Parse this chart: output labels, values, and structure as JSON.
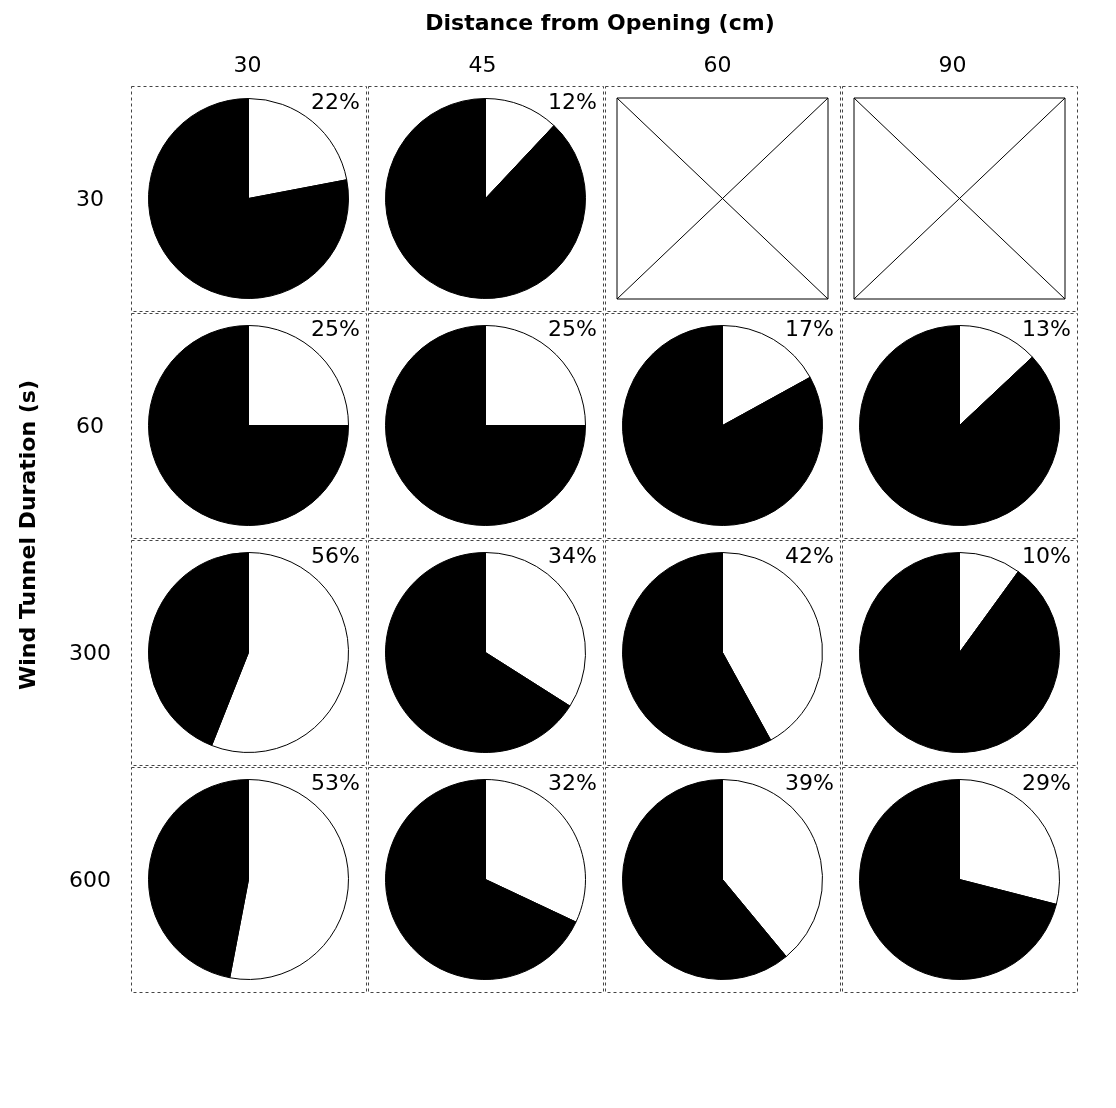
{
  "chart_data": [
    {
      "type": "other",
      "xlabel": "Distance from Opening (cm)",
      "ylabel": "Wind Tunnel Duration (s)",
      "categories": [
        "30",
        "45",
        "60",
        "90"
      ],
      "y_categories": [
        "30",
        "60",
        "300",
        "600"
      ]
    },
    {
      "type": "pie",
      "categories": [
        null,
        null
      ],
      "values": [
        22,
        78
      ],
      "colors": [
        "#ffffff",
        "#000000"
      ],
      "value_labels": [
        "22%",
        null
      ]
    },
    {
      "type": "pie",
      "categories": [
        null,
        null
      ],
      "values": [
        12,
        88
      ],
      "colors": [
        "#ffffff",
        "#000000"
      ],
      "value_labels": [
        "12%",
        null
      ]
    },
    {
      "type": "other"
    },
    {
      "type": "other"
    },
    {
      "type": "pie",
      "categories": [
        null,
        null
      ],
      "values": [
        25,
        75
      ],
      "colors": [
        "#ffffff",
        "#000000"
      ],
      "value_labels": [
        "25%",
        null
      ]
    },
    {
      "type": "pie",
      "categories": [
        null,
        null
      ],
      "values": [
        25,
        75
      ],
      "colors": [
        "#ffffff",
        "#000000"
      ],
      "value_labels": [
        "25%",
        null
      ]
    },
    {
      "type": "pie",
      "categories": [
        null,
        null
      ],
      "values": [
        17,
        83
      ],
      "colors": [
        "#ffffff",
        "#000000"
      ],
      "value_labels": [
        "17%",
        null
      ]
    },
    {
      "type": "pie",
      "categories": [
        null,
        null
      ],
      "values": [
        13,
        87
      ],
      "colors": [
        "#ffffff",
        "#000000"
      ],
      "value_labels": [
        "13%",
        null
      ]
    },
    {
      "type": "pie",
      "categories": [
        null,
        null
      ],
      "values": [
        56,
        44
      ],
      "colors": [
        "#ffffff",
        "#000000"
      ],
      "value_labels": [
        "56%",
        null
      ]
    },
    {
      "type": "pie",
      "categories": [
        null,
        null
      ],
      "values": [
        34,
        66
      ],
      "colors": [
        "#ffffff",
        "#000000"
      ],
      "value_labels": [
        "34%",
        null
      ]
    },
    {
      "type": "pie",
      "categories": [
        null,
        null
      ],
      "values": [
        42,
        58
      ],
      "colors": [
        "#ffffff",
        "#000000"
      ],
      "value_labels": [
        "42%",
        null
      ]
    },
    {
      "type": "pie",
      "categories": [
        null,
        null
      ],
      "values": [
        10,
        90
      ],
      "colors": [
        "#ffffff",
        "#000000"
      ],
      "value_labels": [
        "10%",
        null
      ]
    },
    {
      "type": "pie",
      "categories": [
        null,
        null
      ],
      "values": [
        53,
        47
      ],
      "colors": [
        "#ffffff",
        "#000000"
      ],
      "value_labels": [
        "53%",
        null
      ]
    },
    {
      "type": "pie",
      "categories": [
        null,
        null
      ],
      "values": [
        32,
        68
      ],
      "colors": [
        "#ffffff",
        "#000000"
      ],
      "value_labels": [
        "32%",
        null
      ]
    },
    {
      "type": "pie",
      "categories": [
        null,
        null
      ],
      "values": [
        39,
        61
      ],
      "colors": [
        "#ffffff",
        "#000000"
      ],
      "value_labels": [
        "39%",
        null
      ]
    },
    {
      "type": "pie",
      "categories": [
        null,
        null
      ],
      "values": [
        29,
        71
      ],
      "colors": [
        "#ffffff",
        "#000000"
      ],
      "value_labels": [
        "29%",
        null
      ]
    }
  ]
}
